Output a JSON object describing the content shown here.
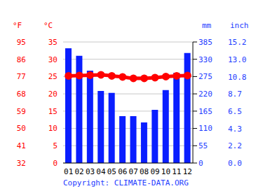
{
  "chart_data": {
    "type": "bar",
    "categories": [
      "01",
      "02",
      "03",
      "04",
      "05",
      "06",
      "07",
      "08",
      "09",
      "10",
      "11",
      "12"
    ],
    "series": [
      {
        "type": "bar",
        "color": "#0a1eff",
        "axis": "y2",
        "values": [
          365,
          341,
          294,
          229,
          223,
          149,
          149,
          129,
          169,
          232,
          287,
          350
        ]
      },
      {
        "type": "line",
        "color": "#ff0000",
        "axis": "y",
        "marker": "circle",
        "values": [
          25.2,
          25.3,
          25.4,
          25.5,
          25.2,
          24.9,
          24.5,
          24.5,
          24.7,
          25.0,
          25.2,
          25.3
        ]
      }
    ],
    "ylabel": "°C",
    "ylim": [
      0,
      35
    ],
    "yticks": [
      0,
      5,
      10,
      15,
      20,
      25,
      30,
      35
    ],
    "y_alt": {
      "label": "°F",
      "lim": [
        32,
        95
      ],
      "ticks": [
        32,
        41,
        50,
        59,
        68,
        77,
        86,
        95
      ]
    },
    "y2label": "mm",
    "y2lim": [
      0,
      385
    ],
    "y2ticks": [
      0,
      55,
      110,
      165,
      220,
      275,
      330,
      385
    ],
    "y2_alt": {
      "label": "inch",
      "lim": [
        0,
        15.2
      ],
      "ticks": [
        {
          "value": 0,
          "label": "0.0"
        },
        2.2,
        4.3,
        6.5,
        8.7,
        10.8,
        {
          "value": 13,
          "label": "13.0"
        },
        15.2
      ]
    },
    "grid": true,
    "annotation": "Copyright: CLIMATE-DATA.ORG"
  }
}
